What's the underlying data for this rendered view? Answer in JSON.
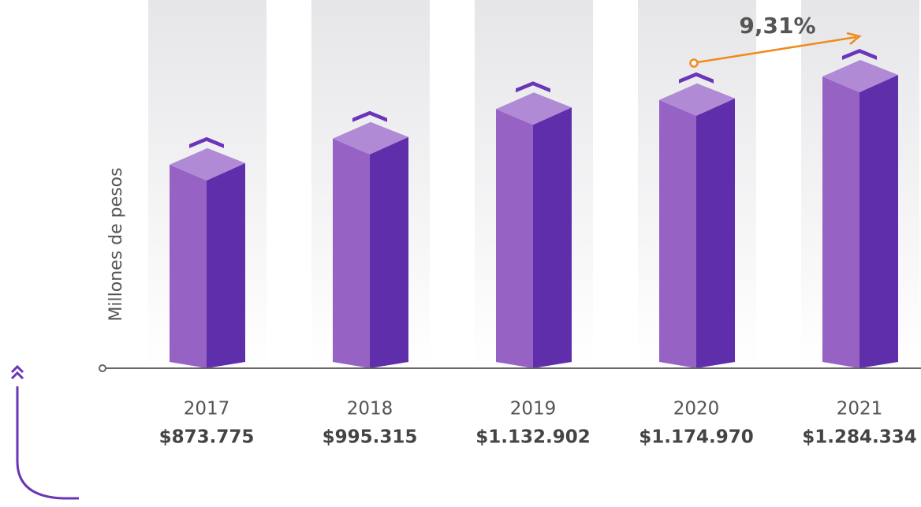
{
  "chart_data": {
    "type": "bar3d",
    "y_label": "Millones de pesos",
    "annotation": "9,31%",
    "categories": [
      "2017",
      "2018",
      "2019",
      "2020",
      "2021"
    ],
    "values": [
      873775,
      995315,
      1132902,
      1174970,
      1284334
    ],
    "value_labels": [
      "$873.775",
      "$995.315",
      "$1.132.902",
      "$1.174.970",
      "$1.284.334"
    ],
    "colors": {
      "top": "#b18ad6",
      "front": "#9663c4",
      "side": "#5f2eab",
      "chevron": "#6a35b8",
      "annotation": "#f08a1c"
    }
  }
}
